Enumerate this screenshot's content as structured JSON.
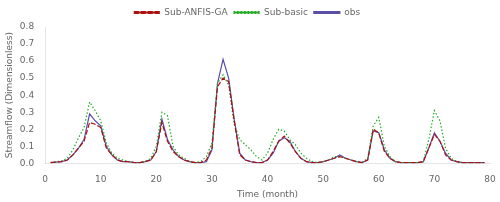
{
  "chart_data": {
    "type": "line",
    "title": "",
    "xlabel": "Time (month)",
    "ylabel": "Streamflow (Dimensionless)",
    "x": [
      1,
      2,
      3,
      4,
      5,
      6,
      7,
      8,
      9,
      10,
      11,
      12,
      13,
      14,
      15,
      16,
      17,
      18,
      19,
      20,
      21,
      22,
      23,
      24,
      25,
      26,
      27,
      28,
      29,
      30,
      31,
      32,
      33,
      34,
      35,
      36,
      37,
      38,
      39,
      40,
      41,
      42,
      43,
      44,
      45,
      46,
      47,
      48,
      49,
      50,
      51,
      52,
      53,
      54,
      55,
      56,
      57,
      58,
      59,
      60,
      61,
      62,
      63,
      64,
      65,
      66,
      67,
      68,
      69,
      70,
      71,
      72,
      73,
      74,
      75,
      76,
      77,
      78,
      79
    ],
    "series": [
      {
        "name": "Sub-ANFIS-GA",
        "color": "#aa1111",
        "line_style": "dashed",
        "values": [
          0.005,
          0.008,
          0.01,
          0.02,
          0.05,
          0.09,
          0.13,
          0.24,
          0.23,
          0.21,
          0.09,
          0.05,
          0.02,
          0.01,
          0.01,
          0.005,
          0.005,
          0.01,
          0.02,
          0.07,
          0.24,
          0.13,
          0.07,
          0.04,
          0.02,
          0.01,
          0.005,
          0.005,
          0.02,
          0.09,
          0.45,
          0.5,
          0.48,
          0.25,
          0.05,
          0.02,
          0.01,
          0.005,
          0.005,
          0.02,
          0.07,
          0.13,
          0.16,
          0.12,
          0.07,
          0.03,
          0.01,
          0.005,
          0.005,
          0.01,
          0.02,
          0.03,
          0.04,
          0.03,
          0.02,
          0.01,
          0.005,
          0.02,
          0.2,
          0.18,
          0.07,
          0.03,
          0.01,
          0.005,
          0.005,
          0.005,
          0.005,
          0.01,
          0.09,
          0.17,
          0.13,
          0.05,
          0.02,
          0.01,
          0.005,
          0.005,
          0.005,
          0.005,
          0.005
        ]
      },
      {
        "name": "Sub-basic",
        "color": "#22aa22",
        "line_style": "dotted",
        "values": [
          0.005,
          0.01,
          0.015,
          0.03,
          0.08,
          0.15,
          0.21,
          0.36,
          0.31,
          0.25,
          0.12,
          0.06,
          0.03,
          0.02,
          0.01,
          0.005,
          0.005,
          0.01,
          0.03,
          0.1,
          0.3,
          0.28,
          0.1,
          0.05,
          0.03,
          0.01,
          0.005,
          0.01,
          0.04,
          0.12,
          0.47,
          0.52,
          0.46,
          0.23,
          0.14,
          0.11,
          0.08,
          0.04,
          0.02,
          0.06,
          0.14,
          0.2,
          0.19,
          0.14,
          0.11,
          0.06,
          0.03,
          0.01,
          0.005,
          0.01,
          0.02,
          0.04,
          0.04,
          0.03,
          0.02,
          0.01,
          0.005,
          0.03,
          0.22,
          0.27,
          0.1,
          0.04,
          0.01,
          0.005,
          0.005,
          0.005,
          0.005,
          0.01,
          0.14,
          0.31,
          0.25,
          0.09,
          0.03,
          0.01,
          0.005,
          0.005,
          0.005,
          0.005,
          0.005
        ]
      },
      {
        "name": "obs",
        "color": "#5b4ea8",
        "line_style": "solid",
        "values": [
          0.005,
          0.008,
          0.01,
          0.02,
          0.05,
          0.09,
          0.14,
          0.29,
          0.25,
          0.22,
          0.1,
          0.05,
          0.02,
          0.01,
          0.01,
          0.005,
          0.005,
          0.01,
          0.02,
          0.07,
          0.26,
          0.14,
          0.08,
          0.04,
          0.02,
          0.01,
          0.005,
          0.005,
          0.01,
          0.08,
          0.47,
          0.61,
          0.5,
          0.26,
          0.06,
          0.02,
          0.01,
          0.005,
          0.005,
          0.02,
          0.06,
          0.13,
          0.15,
          0.13,
          0.07,
          0.03,
          0.01,
          0.005,
          0.005,
          0.01,
          0.02,
          0.03,
          0.05,
          0.03,
          0.02,
          0.01,
          0.005,
          0.02,
          0.19,
          0.18,
          0.08,
          0.03,
          0.01,
          0.005,
          0.005,
          0.005,
          0.005,
          0.01,
          0.09,
          0.18,
          0.13,
          0.06,
          0.02,
          0.01,
          0.005,
          0.005,
          0.005,
          0.005,
          0.005
        ]
      }
    ],
    "xlim": [
      0,
      80
    ],
    "xticks": [
      0,
      10,
      20,
      30,
      40,
      50,
      60,
      70,
      80
    ],
    "ylim": [
      0,
      0.8
    ],
    "yticks": [
      {
        "value": 0,
        "label": "0.0"
      },
      0.1,
      0.2,
      0.3,
      0.4,
      0.5,
      0.6,
      0.7,
      0.8
    ],
    "grid": false,
    "legend": "top"
  }
}
